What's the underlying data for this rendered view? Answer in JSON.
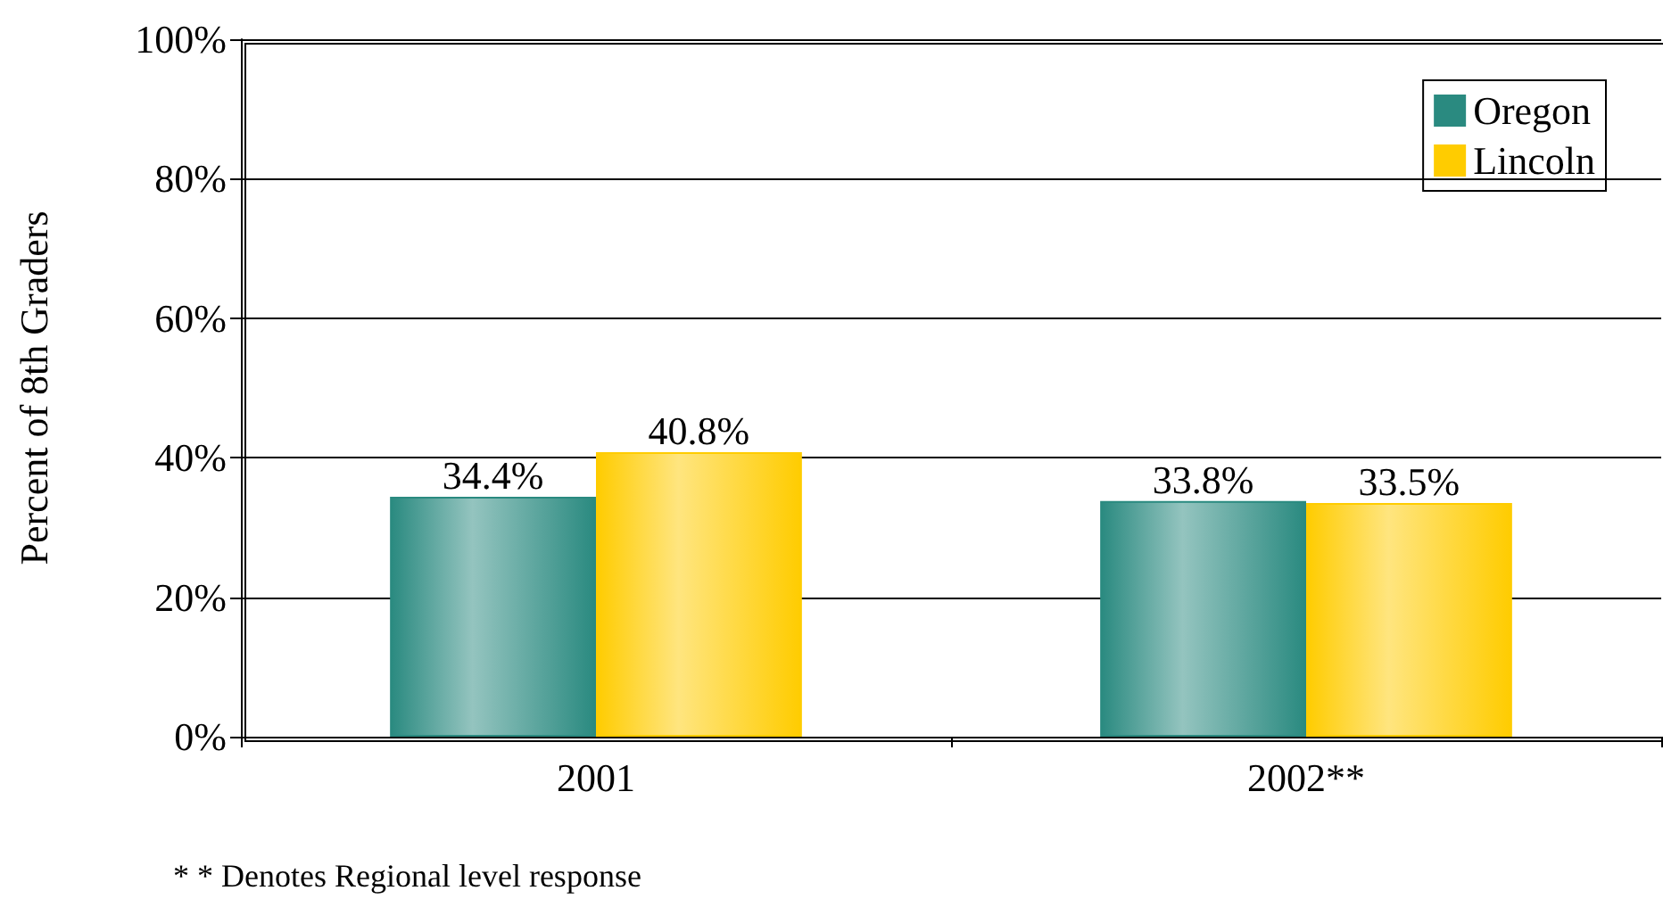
{
  "chart_data": {
    "type": "bar",
    "ylabel": "Percent of 8th Graders",
    "categories": [
      "2001",
      "2002**"
    ],
    "series": [
      {
        "name": "Oregon",
        "color": "#2a8a80",
        "values": [
          34.4,
          33.8
        ],
        "value_labels": [
          "34.4%",
          "33.8%"
        ]
      },
      {
        "name": "Lincoln",
        "color": "#ffcc00",
        "values": [
          40.8,
          33.5
        ],
        "value_labels": [
          "40.8%",
          "33.5%"
        ]
      }
    ],
    "ylim": [
      0,
      100
    ],
    "yticks": [
      {
        "value": 0,
        "label": "0%"
      },
      {
        "value": 20,
        "label": "20%"
      },
      {
        "value": 40,
        "label": "40%"
      },
      {
        "value": 60,
        "label": "60%"
      },
      {
        "value": 80,
        "label": "80%"
      },
      {
        "value": 100,
        "label": "100%"
      }
    ],
    "grid": "y",
    "legend": "top right",
    "annotations": [
      "* * Denotes Regional level response"
    ]
  }
}
